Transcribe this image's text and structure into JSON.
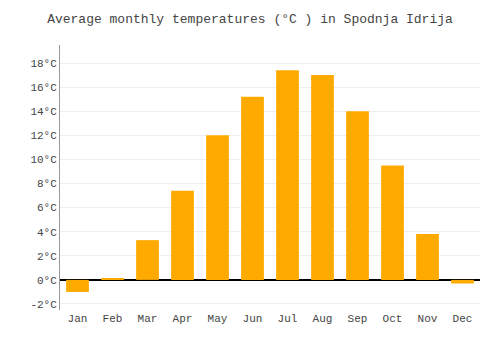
{
  "chart_data": {
    "type": "bar",
    "title": "Average monthly temperatures (°C ) in Spodnja Idrija",
    "categories": [
      "Jan",
      "Feb",
      "Mar",
      "Apr",
      "May",
      "Jun",
      "Jul",
      "Aug",
      "Sep",
      "Oct",
      "Nov",
      "Dec"
    ],
    "values": [
      -1.0,
      0.1,
      3.3,
      7.4,
      12.0,
      15.2,
      17.4,
      17.0,
      14.0,
      9.5,
      3.8,
      -0.3
    ],
    "color": "#FFAA00",
    "ylim": [
      -2.5,
      19.5
    ],
    "yticks": [
      {
        "value": -2,
        "label": "-2°C"
      },
      {
        "value": 0,
        "label": "0°C"
      },
      {
        "value": 2,
        "label": "2°C"
      },
      {
        "value": 4,
        "label": "4°C"
      },
      {
        "value": 6,
        "label": "6°C"
      },
      {
        "value": 8,
        "label": "8°C"
      },
      {
        "value": 10,
        "label": "10°C"
      },
      {
        "value": 12,
        "label": "12°C"
      },
      {
        "value": 14,
        "label": "14°C"
      },
      {
        "value": 16,
        "label": "16°C"
      },
      {
        "value": 18,
        "label": "18°C"
      }
    ],
    "grid": true
  }
}
